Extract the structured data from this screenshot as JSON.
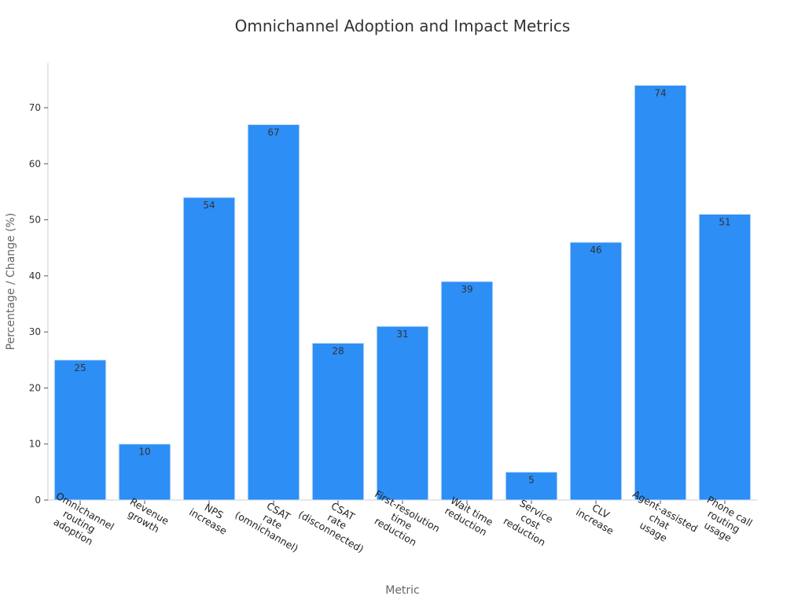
{
  "chart_data": {
    "type": "bar",
    "title": "Omnichannel Adoption and Impact Metrics",
    "xlabel": "Metric",
    "ylabel": "Percentage / Change (%)",
    "ylim": [
      0,
      78
    ],
    "yticks": [
      0,
      10,
      20,
      30,
      40,
      50,
      60,
      70
    ],
    "grid": false,
    "categories": [
      [
        "Omnichannel",
        "routing",
        "adoption"
      ],
      [
        "Revenue",
        "growth"
      ],
      [
        "NPS",
        "increase"
      ],
      [
        "CSAT",
        "rate",
        "(omnichannel)"
      ],
      [
        "CSAT",
        "rate",
        "(disconnected)"
      ],
      [
        "First-resolution",
        "time",
        "reduction"
      ],
      [
        "Wait time",
        "reduction"
      ],
      [
        "Service",
        "cost",
        "reduction"
      ],
      [
        "CLV",
        "increase"
      ],
      [
        "Agent-assisted",
        "chat",
        "usage"
      ],
      [
        "Phone call",
        "routing",
        "usage"
      ]
    ],
    "values": [
      25,
      10,
      54,
      67,
      28,
      31,
      39,
      5,
      46,
      74,
      51
    ],
    "colors": {
      "bar": "#2d8ef6",
      "bar_edge": "#d9e6f5",
      "axis": "#cccccc"
    }
  }
}
